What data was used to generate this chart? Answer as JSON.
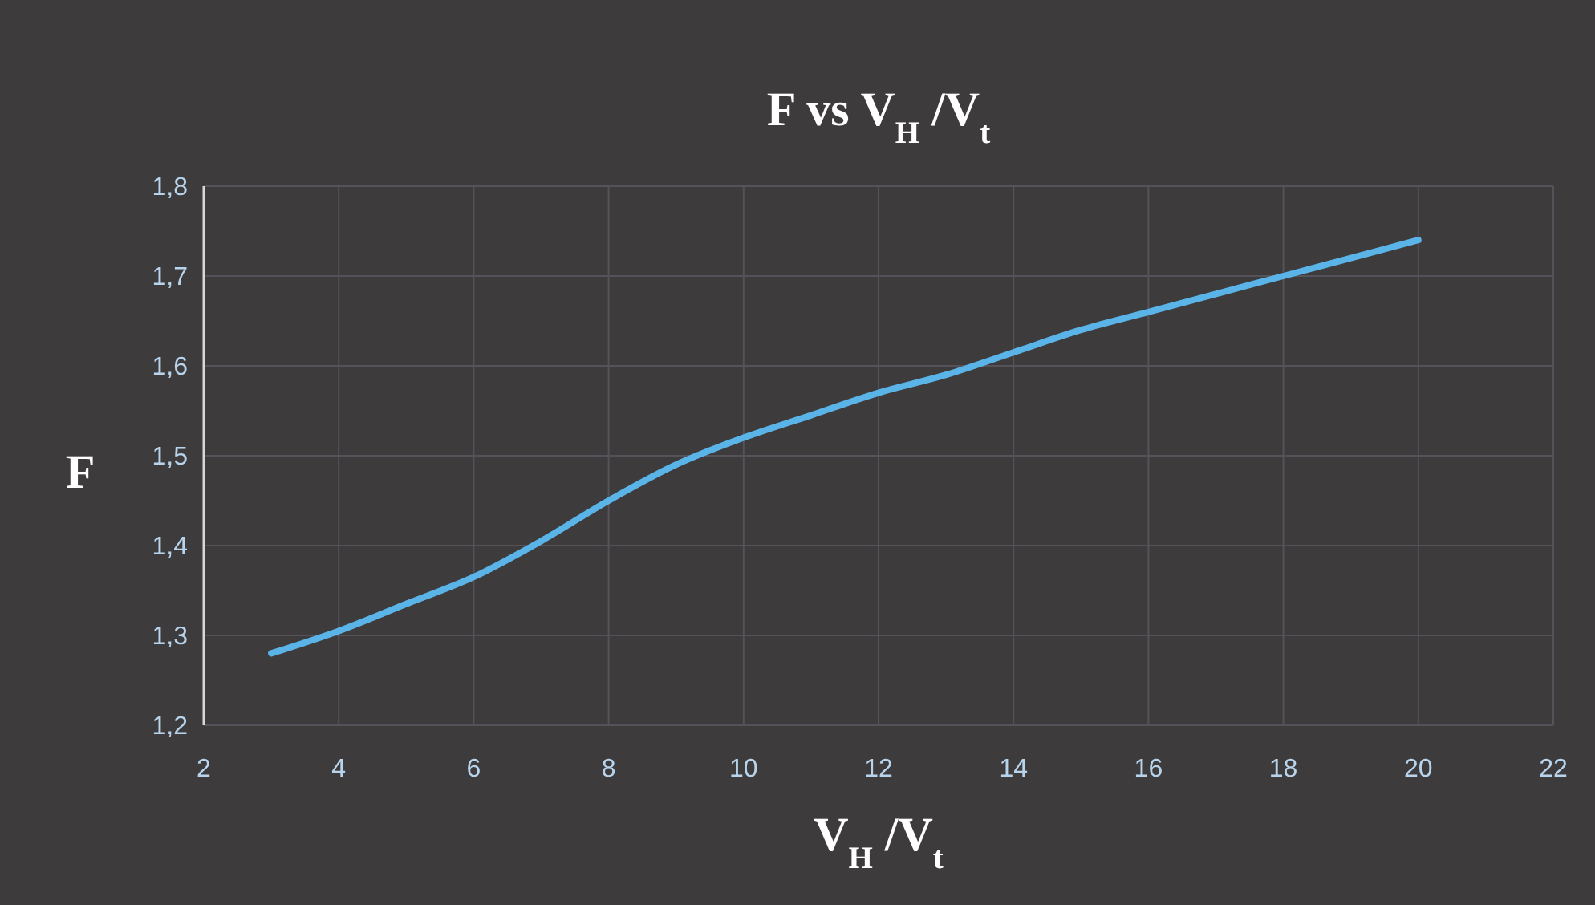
{
  "chart_data": {
    "type": "line",
    "title": "F vs V$_{H}$/V$_{t}$",
    "xlabel": "V$_{H}$/V$_{t}$",
    "ylabel": "F",
    "x": [
      3,
      4,
      5,
      6,
      7,
      8,
      9,
      10,
      11,
      12,
      13,
      14,
      15,
      16,
      17,
      18,
      19,
      20
    ],
    "series": [
      {
        "color": "#5ab4e8",
        "values": [
          1.28,
          1.305,
          1.335,
          1.365,
          1.405,
          1.45,
          1.49,
          1.52,
          1.545,
          1.57,
          1.59,
          1.615,
          1.64,
          1.66,
          1.68,
          1.7,
          1.72,
          1.74
        ]
      }
    ],
    "xlim": [
      2,
      22
    ],
    "xticks": [
      2,
      4,
      6,
      8,
      10,
      12,
      14,
      16,
      18,
      20,
      22
    ],
    "ylim": [
      1.2,
      1.8
    ],
    "yticks": [
      {
        "value": 1.2,
        "label": "1,2"
      },
      {
        "value": 1.3,
        "label": "1,3"
      },
      {
        "value": 1.4,
        "label": "1,4"
      },
      {
        "value": 1.5,
        "label": "1,5"
      },
      {
        "value": 1.6,
        "label": "1,6"
      },
      {
        "value": 1.7,
        "label": "1,7"
      },
      {
        "value": 1.8,
        "label": "1,8"
      }
    ],
    "grid": true,
    "marker": "none",
    "line_style": "solid"
  }
}
